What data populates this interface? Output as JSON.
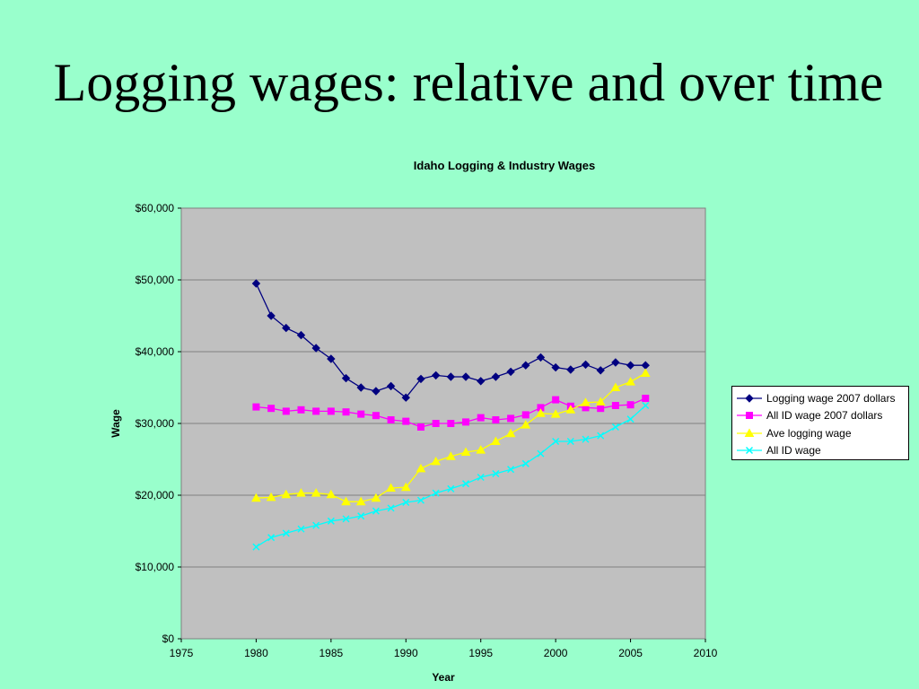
{
  "slide": {
    "title": "Logging wages: relative and over time"
  },
  "chart_data": {
    "type": "line",
    "title": "Idaho Logging & Industry Wages",
    "xlabel": "Year",
    "ylabel": "Wage",
    "xlim": [
      1975,
      2010
    ],
    "ylim": [
      0,
      60000
    ],
    "x_ticks": [
      "1975",
      "1980",
      "1985",
      "1990",
      "1995",
      "2000",
      "2005",
      "2010"
    ],
    "y_ticks": [
      "$0",
      "$10,000",
      "$20,000",
      "$30,000",
      "$40,000",
      "$50,000",
      "$60,000"
    ],
    "grid": "horizontal",
    "legend": "right",
    "x": [
      1980,
      1981,
      1982,
      1983,
      1984,
      1985,
      1986,
      1987,
      1988,
      1989,
      1990,
      1991,
      1992,
      1993,
      1994,
      1995,
      1996,
      1997,
      1998,
      1999,
      2000,
      2001,
      2002,
      2003,
      2004,
      2005,
      2006
    ],
    "series": [
      {
        "name": "Logging wage 2007 dollars",
        "color": "#000080",
        "marker": "diamond",
        "values": [
          49500,
          45000,
          43300,
          42300,
          40500,
          39000,
          36300,
          35000,
          34500,
          35200,
          33600,
          36200,
          36700,
          36500,
          36500,
          35900,
          36500,
          37200,
          38100,
          39200,
          37800,
          37500,
          38200,
          37400,
          38500,
          38100,
          38100
        ]
      },
      {
        "name": "All ID wage 2007 dollars",
        "color": "#ff00ff",
        "marker": "square",
        "values": [
          32300,
          32100,
          31700,
          31900,
          31700,
          31700,
          31600,
          31300,
          31100,
          30500,
          30300,
          29500,
          30000,
          30000,
          30200,
          30800,
          30500,
          30700,
          31200,
          32200,
          33300,
          32400,
          32200,
          32100,
          32500,
          32600,
          33500
        ]
      },
      {
        "name": "Ave logging wage",
        "color": "#ffff00",
        "marker": "triangle",
        "values": [
          19600,
          19700,
          20100,
          20300,
          20300,
          20100,
          19100,
          19100,
          19600,
          21000,
          21100,
          23700,
          24700,
          25400,
          26000,
          26300,
          27500,
          28600,
          29800,
          31400,
          31300,
          31900,
          32900,
          33000,
          35000,
          35800,
          37000
        ]
      },
      {
        "name": "All ID wage",
        "color": "#00ffff",
        "marker": "x",
        "values": [
          12800,
          14100,
          14700,
          15300,
          15800,
          16400,
          16700,
          17100,
          17800,
          18200,
          19000,
          19300,
          20300,
          20900,
          21600,
          22500,
          23000,
          23600,
          24400,
          25800,
          27500,
          27500,
          27800,
          28300,
          29500,
          30600,
          32500
        ]
      }
    ]
  }
}
